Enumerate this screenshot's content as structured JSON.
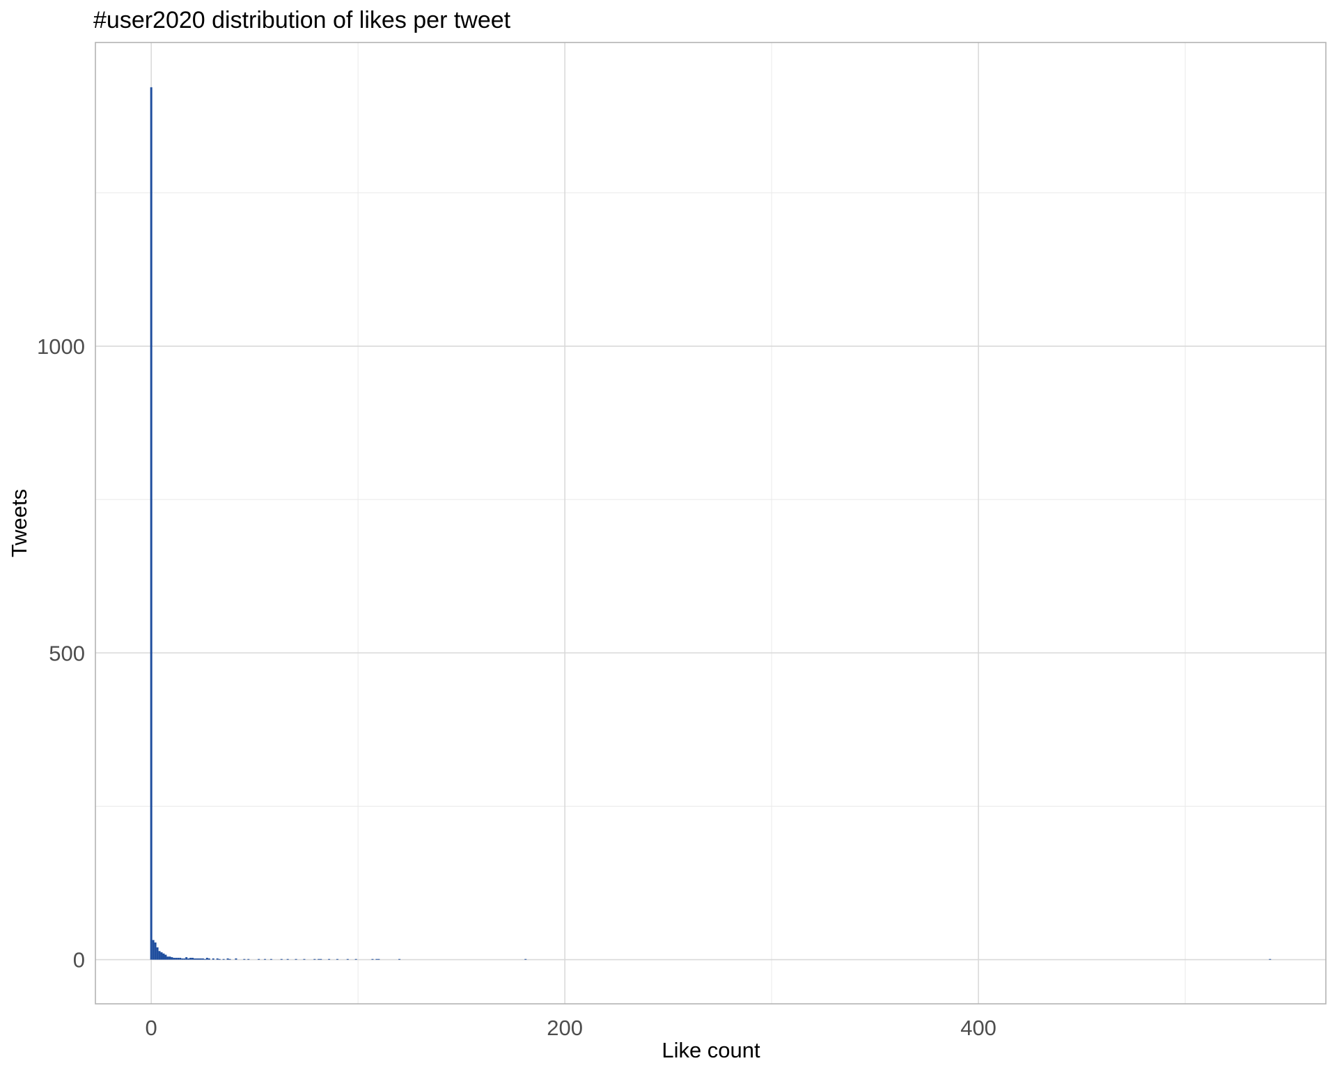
{
  "chart_data": {
    "type": "bar",
    "title": "#user2020 distribution of likes per tweet",
    "xlabel": "Like count",
    "ylabel": "Tweets",
    "xlim": [
      -27,
      568
    ],
    "ylim": [
      -72,
      1495
    ],
    "x_ticks": [
      0,
      200,
      400
    ],
    "y_ticks": [
      0,
      500,
      1000
    ],
    "x_minor_ticks": [
      100,
      300,
      500
    ],
    "y_minor_ticks": [
      250,
      750,
      1250
    ],
    "grid": true,
    "bin_width": 1,
    "bar_color": "#1f4e9e",
    "x": [
      0,
      1,
      2,
      3,
      4,
      5,
      6,
      7,
      8,
      9,
      10,
      11,
      12,
      13,
      14,
      15,
      16,
      17,
      18,
      19,
      20,
      21,
      22,
      23,
      24,
      25,
      26,
      27,
      28,
      30,
      32,
      33,
      35,
      37,
      38,
      41,
      45,
      47,
      52,
      55,
      58,
      63,
      66,
      70,
      74,
      79,
      81,
      82,
      86,
      90,
      95,
      99,
      107,
      109,
      110,
      120,
      181,
      541
    ],
    "values": [
      1422,
      32,
      28,
      20,
      14,
      12,
      10,
      8,
      5,
      5,
      4,
      3,
      3,
      3,
      3,
      2,
      2,
      4,
      2,
      3,
      3,
      2,
      2,
      2,
      2,
      2,
      1,
      3,
      2,
      2,
      2,
      1,
      1,
      2,
      1,
      2,
      1,
      1,
      1,
      1,
      1,
      1,
      1,
      1,
      1,
      1,
      1,
      1,
      1,
      1,
      1,
      1,
      1,
      1,
      1,
      1,
      1,
      1
    ]
  }
}
